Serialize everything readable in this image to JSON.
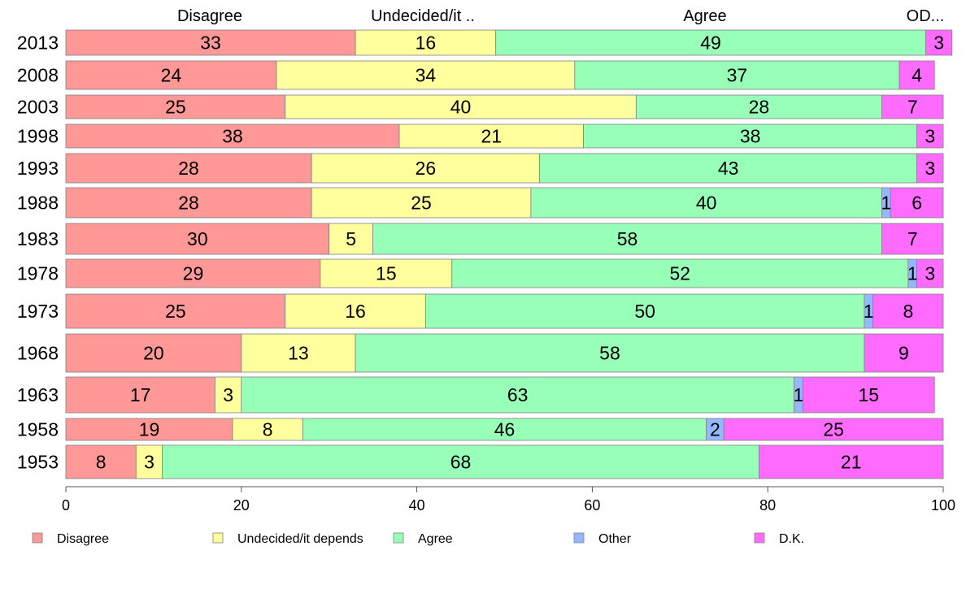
{
  "chart_data": {
    "type": "bar",
    "orientation": "horizontal",
    "stacked": true,
    "title": "",
    "xlabel": "",
    "ylabel": "",
    "xlim": [
      0,
      100
    ],
    "x_ticks": [
      "0",
      "20",
      "40",
      "60",
      "80",
      "100"
    ],
    "grid": false,
    "legend_position": "bottom",
    "categories": [
      "2013",
      "2008",
      "2003",
      "1998",
      "1993",
      "1988",
      "1983",
      "1978",
      "1973",
      "1968",
      "1963",
      "1958",
      "1953"
    ],
    "column_headers": [
      "Disagree",
      "Undecided/it ..",
      "Agree",
      "OD..."
    ],
    "series": [
      {
        "name": "Disagree",
        "color": "#FF9896",
        "values": [
          33,
          24,
          25,
          38,
          28,
          28,
          30,
          29,
          25,
          20,
          17,
          19,
          8
        ]
      },
      {
        "name": "Undecided/it depends",
        "color": "#FFFF9E",
        "values": [
          16,
          34,
          40,
          21,
          26,
          25,
          5,
          15,
          16,
          13,
          3,
          8,
          3
        ]
      },
      {
        "name": "Agree",
        "color": "#98FFB8",
        "values": [
          49,
          37,
          28,
          38,
          43,
          40,
          58,
          52,
          50,
          58,
          63,
          46,
          68
        ]
      },
      {
        "name": "Other",
        "color": "#94B8FF",
        "values": [
          0,
          0,
          0,
          0,
          0,
          1,
          0,
          1,
          1,
          0,
          1,
          2,
          0
        ]
      },
      {
        "name": "D.K.",
        "color": "#FF6BFF",
        "values": [
          3,
          4,
          7,
          3,
          3,
          6,
          7,
          3,
          8,
          9,
          15,
          25,
          21
        ]
      }
    ]
  }
}
